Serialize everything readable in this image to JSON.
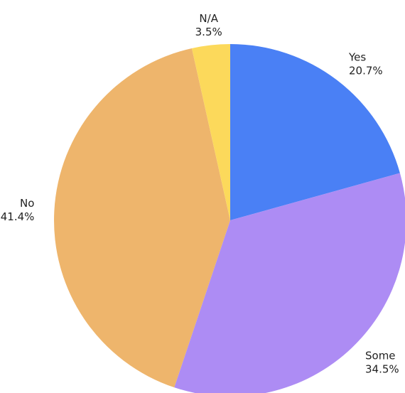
{
  "chart_data": {
    "type": "pie",
    "title": "",
    "start_angle_deg": 0,
    "direction": "clockwise",
    "slices": [
      {
        "label": "Yes",
        "percent_text": "20.7%",
        "value": 20.7,
        "color": "#4a80f5"
      },
      {
        "label": "Some",
        "percent_text": "34.5%",
        "value": 34.5,
        "color": "#ad8cf4"
      },
      {
        "label": "No",
        "percent_text": "41.4%",
        "value": 41.4,
        "color": "#eeb56c"
      },
      {
        "label": "N/A",
        "percent_text": "3.5%",
        "value": 3.5,
        "color": "#fcd95b"
      }
    ]
  }
}
